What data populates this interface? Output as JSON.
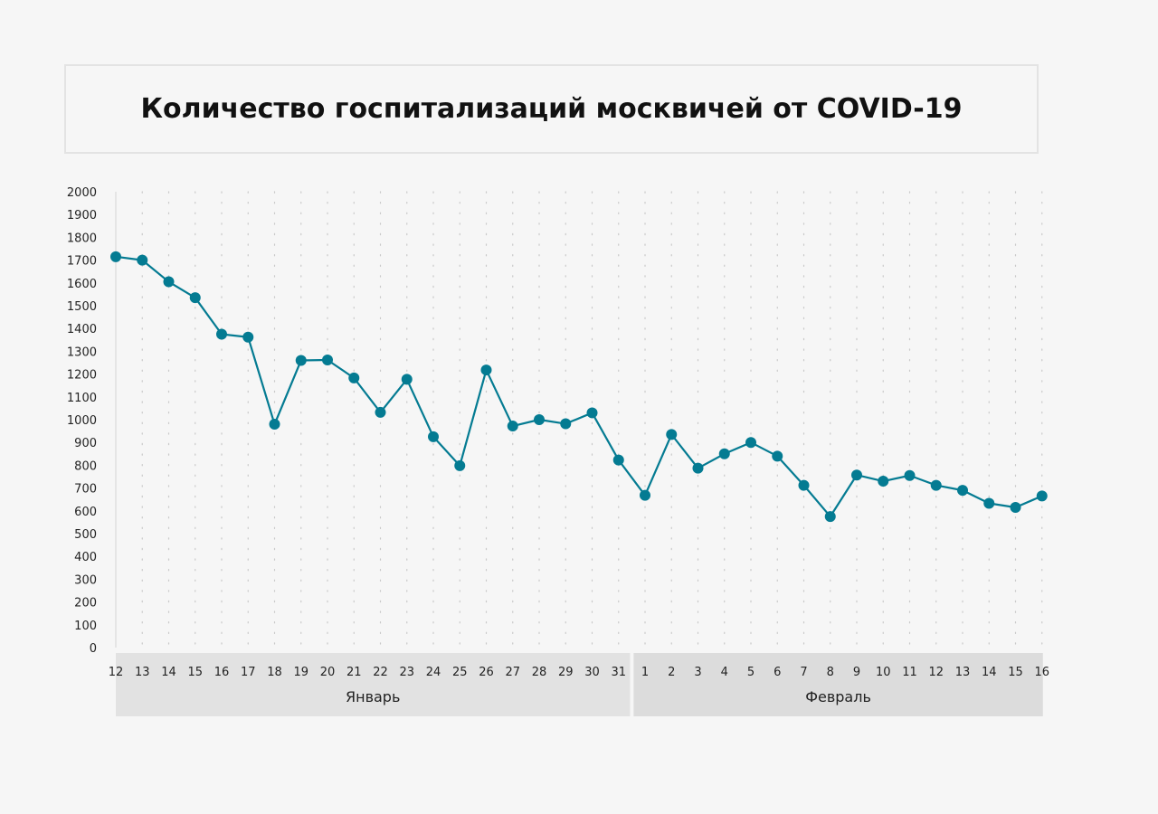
{
  "chart_data": {
    "type": "line",
    "title": "Количество госпитализаций москвичей от COVID-19",
    "xlabel": "",
    "ylabel": "",
    "ylim": [
      0,
      2000
    ],
    "y_ticks": [
      0,
      100,
      200,
      300,
      400,
      500,
      600,
      700,
      800,
      900,
      1000,
      1100,
      1200,
      1300,
      1400,
      1500,
      1600,
      1700,
      1800,
      1900,
      2000
    ],
    "grid": "vertical dotted",
    "categories": [
      "12",
      "13",
      "14",
      "15",
      "16",
      "17",
      "18",
      "19",
      "20",
      "21",
      "22",
      "23",
      "24",
      "25",
      "26",
      "27",
      "28",
      "29",
      "30",
      "31",
      "1",
      "2",
      "3",
      "4",
      "5",
      "6",
      "7",
      "8",
      "9",
      "10",
      "11",
      "12",
      "13",
      "14",
      "15",
      "16"
    ],
    "months": [
      {
        "label": "Январь",
        "start_index": 0,
        "end_index": 19
      },
      {
        "label": "Февраль",
        "start_index": 20,
        "end_index": 35
      }
    ],
    "series": [
      {
        "color": "#047b92",
        "values": [
          1715,
          1700,
          1605,
          1535,
          1375,
          1362,
          980,
          1260,
          1262,
          1183,
          1032,
          1177,
          925,
          798,
          1218,
          972,
          1000,
          982,
          1030,
          823,
          668,
          935,
          787,
          850,
          900,
          840,
          712,
          575,
          757,
          730,
          755,
          712,
          690,
          633,
          615,
          665
        ]
      }
    ]
  }
}
